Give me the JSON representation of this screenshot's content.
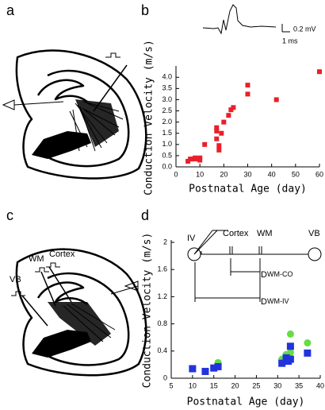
{
  "panel_labels": [
    "a",
    "b",
    "c",
    "d"
  ],
  "trace_scale": {
    "voltage": "0.2 mV",
    "time": "1 ms"
  },
  "diagram_c": {
    "labels": [
      "VB",
      "WM",
      "Cortex"
    ]
  },
  "inset_d": {
    "nodes": [
      "IV",
      "Cortex",
      "WM",
      "VB"
    ],
    "distances": [
      {
        "main": "D",
        "sub": "WM-CO"
      },
      {
        "main": "D",
        "sub": "WM-IV"
      }
    ]
  },
  "chart_data": [
    {
      "type": "scatter",
      "ylabel": "Conduction Velocity (m/s)",
      "xlabel": "Postnatal Age (day)",
      "xlim": [
        0,
        60
      ],
      "xticks": [
        0,
        10,
        20,
        30,
        40,
        50,
        60
      ],
      "ylim": [
        0,
        4.4
      ],
      "yticks": [
        {
          "value": 0,
          "label": "0.0"
        },
        0.5,
        {
          "value": 1,
          "label": "1.0"
        },
        1.5,
        {
          "value": 2,
          "label": "2.0"
        },
        2.5,
        {
          "value": 3,
          "label": "3.0"
        },
        3.5,
        {
          "value": 4,
          "label": "4.0"
        }
      ],
      "series": [
        {
          "color": "#e8202a",
          "marker": "square",
          "x": [
            5,
            6,
            7,
            8,
            9,
            10,
            10,
            12,
            17,
            17,
            17,
            18,
            18,
            19,
            20,
            22,
            23,
            24,
            30,
            30,
            42,
            60
          ],
          "values": [
            0.25,
            0.35,
            0.35,
            0.4,
            0.35,
            0.3,
            0.4,
            1.0,
            1.75,
            1.6,
            1.25,
            0.95,
            0.75,
            1.5,
            2.0,
            2.3,
            2.55,
            2.65,
            3.65,
            3.25,
            3.0,
            4.25
          ]
        }
      ]
    },
    {
      "type": "scatter",
      "ylabel": "Conduction Velocity (m/s)",
      "xlabel": "Postnatal Age (day)",
      "xlim": [
        5,
        40
      ],
      "xticks": [
        5,
        10,
        15,
        20,
        25,
        30,
        35,
        40
      ],
      "ylim": [
        0,
        2
      ],
      "yticks": [
        0,
        0.4,
        0.8,
        1.2,
        1.6,
        2
      ],
      "series": [
        {
          "color": "#66dd44",
          "marker": "circle",
          "x": [
            16,
            31,
            32,
            33,
            33,
            37
          ],
          "values": [
            0.23,
            0.28,
            0.35,
            0.65,
            0.38,
            0.52
          ]
        },
        {
          "color": "#2233dd",
          "marker": "square",
          "x": [
            10,
            13,
            15,
            16,
            31,
            32,
            32.5,
            33,
            33,
            37
          ],
          "values": [
            0.14,
            0.1,
            0.15,
            0.17,
            0.22,
            0.3,
            0.25,
            0.47,
            0.28,
            0.37
          ]
        }
      ]
    }
  ]
}
